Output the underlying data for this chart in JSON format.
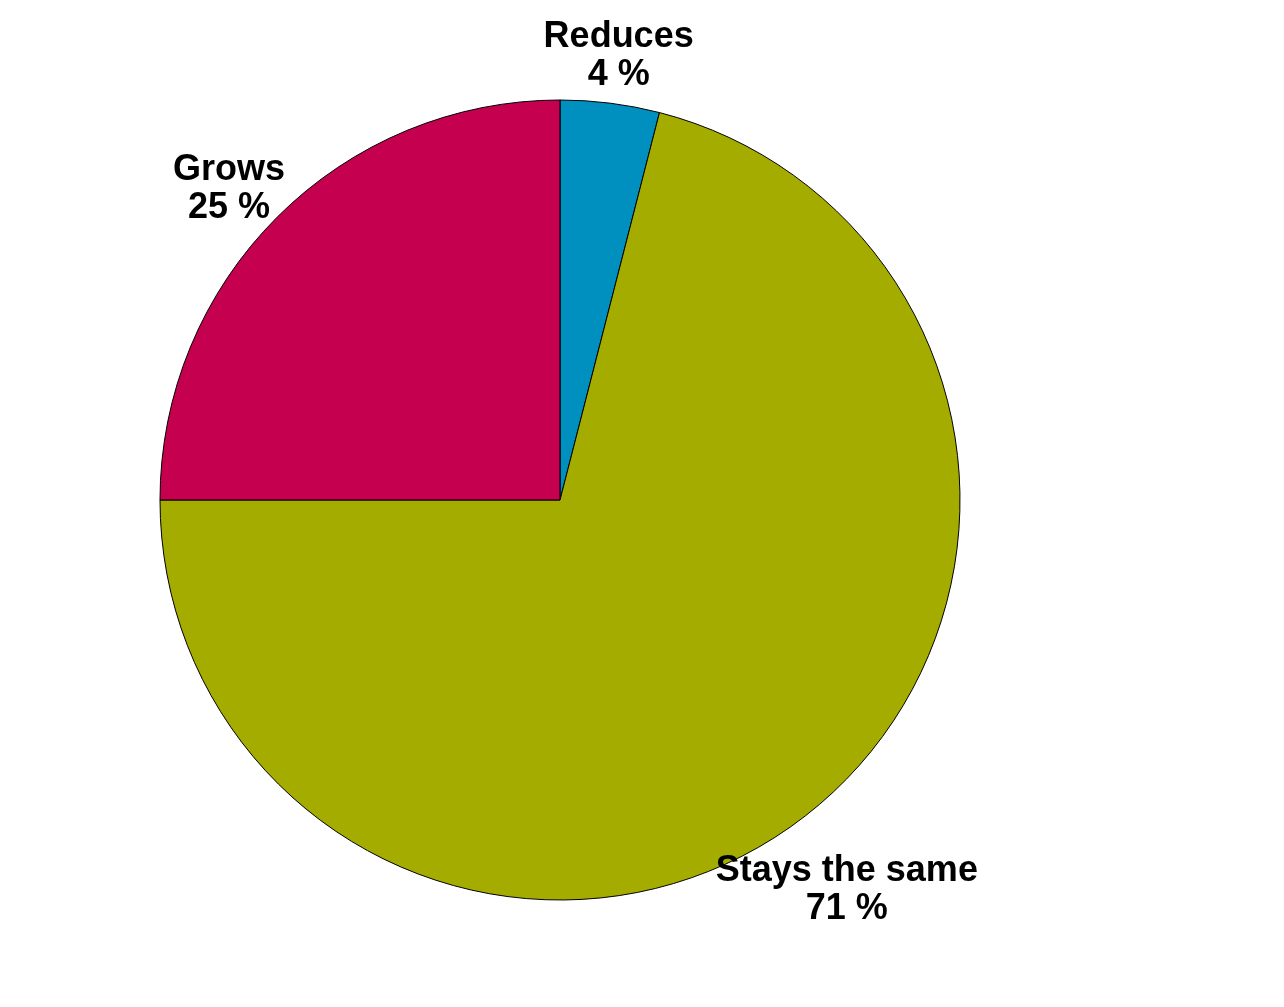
{
  "chart_data": {
    "type": "pie",
    "categories": [
      "Reduces",
      "Stays the same",
      "Grows"
    ],
    "values": [
      4,
      71,
      25
    ],
    "colors": [
      "#0090c0",
      "#a5ac00",
      "#c4004f"
    ],
    "value_labels": [
      "4 %",
      "71 %",
      "25 %"
    ],
    "legend": false
  }
}
